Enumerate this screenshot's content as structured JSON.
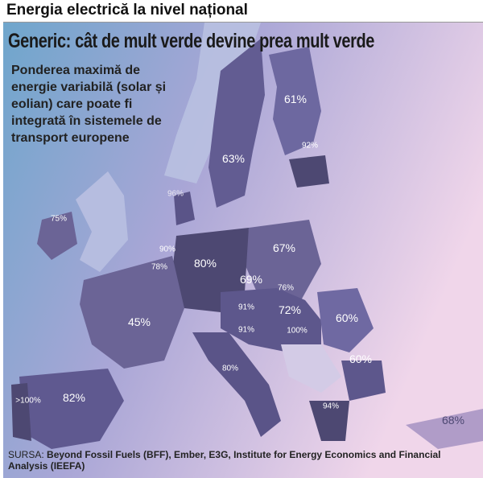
{
  "header": {
    "title": "Energia electrică la nivel național"
  },
  "map": {
    "headline": "Generic: cât de mult verde devine prea mult verde",
    "subtitle": "Ponderea maximă de energie variabilă (solar și eolian) care poate fi integrată în sistemele de transport europene",
    "labels": [
      "61%",
      "92%",
      "63%",
      "96%",
      "75%",
      "67%",
      "90%",
      "78%",
      "80%",
      "69%",
      "76%",
      "91%",
      "72%",
      "60%",
      "45%",
      "91%",
      "100%",
      "80%",
      "60%",
      "82%",
      ">100%",
      "94%",
      "68%"
    ],
    "source_prefix": "SURSA:",
    "source_text": "Beyond Fossil Fuels (BFF), Ember, E3G, Institute for Energy Economics and Financial Analysis (IEEFA)",
    "colors": {
      "land_dark": "#4d4872",
      "land_mid": "#6b6496",
      "land_light": "#9d97c4",
      "sea_left": "#7fb0d0",
      "sea_right": "#e8c8e0"
    }
  }
}
